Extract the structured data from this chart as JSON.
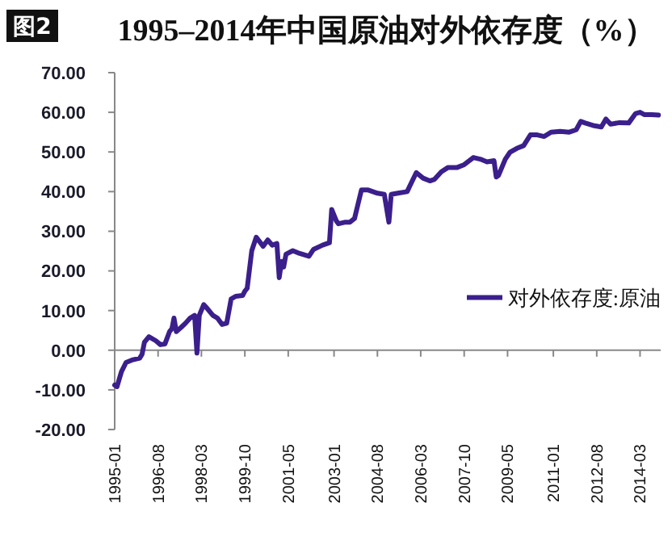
{
  "chart_data": {
    "type": "line",
    "title": "1995–2014年中国原油对外依存度（%）",
    "annotations": [
      "图2"
    ],
    "x": [
      "1995-01",
      "1995-02",
      "1995-04",
      "1995-06",
      "1995-09",
      "1995-12",
      "1996-01",
      "1996-02",
      "1996-04",
      "1996-07",
      "1996-09",
      "1996-11",
      "1997-01",
      "1997-02",
      "1997-03",
      "1997-04",
      "1997-06",
      "1997-08",
      "1997-10",
      "1997-12",
      "1998-01",
      "1998-02",
      "1998-04",
      "1998-05",
      "1998-08",
      "1998-10",
      "1998-12",
      "1999-02",
      "1999-04",
      "1999-06",
      "1999-09",
      "1999-10",
      "1999-11",
      "2000-01",
      "2000-03",
      "2000-06",
      "2000-08",
      "2000-10",
      "2000-12",
      "2001-01",
      "2001-02",
      "2001-03",
      "2001-04",
      "2001-07",
      "2001-10",
      "2002-02",
      "2002-04",
      "2002-08",
      "2002-11",
      "2002-12",
      "2003-02",
      "2003-03",
      "2003-06",
      "2003-08",
      "2003-10",
      "2004-01",
      "2004-04",
      "2004-08",
      "2004-11",
      "2005-01",
      "2005-02",
      "2005-05",
      "2005-09",
      "2006-01",
      "2006-04",
      "2006-07",
      "2006-09",
      "2006-12",
      "2007-03",
      "2007-07",
      "2007-10",
      "2008-02",
      "2008-05",
      "2008-08",
      "2008-11",
      "2008-12",
      "2009-01",
      "2009-04",
      "2009-06",
      "2009-09",
      "2009-12",
      "2010-03",
      "2010-06",
      "2010-09",
      "2010-12",
      "2011-04",
      "2011-08",
      "2011-11",
      "2012-01",
      "2012-03",
      "2012-07",
      "2012-10",
      "2012-12",
      "2013-02",
      "2013-06",
      "2013-10",
      "2014-01",
      "2014-03",
      "2014-05",
      "2014-08",
      "2014-11"
    ],
    "series": [
      {
        "name": "对外依存度:原油",
        "color": "#3b1f8c",
        "values": [
          -8.8,
          -9.2,
          -5.4,
          -3.1,
          -2.4,
          -2.0,
          -1.0,
          2.0,
          3.4,
          2.4,
          1.4,
          1.6,
          4.7,
          5.4,
          8.1,
          4.7,
          5.7,
          6.8,
          8.1,
          8.8,
          -0.7,
          8.8,
          11.5,
          10.9,
          8.8,
          8.1,
          6.5,
          6.8,
          12.9,
          13.6,
          13.8,
          14.9,
          15.6,
          25.1,
          28.5,
          26.2,
          27.8,
          26.5,
          26.9,
          18.3,
          22.4,
          21.0,
          24.2,
          25.1,
          24.4,
          23.7,
          25.4,
          26.5,
          27.1,
          35.5,
          32.6,
          31.9,
          32.3,
          32.3,
          33.2,
          40.4,
          40.4,
          39.6,
          39.3,
          32.3,
          39.3,
          39.6,
          40.0,
          44.8,
          43.4,
          42.7,
          43.1,
          45.0,
          46.1,
          46.1,
          46.8,
          48.6,
          48.2,
          47.5,
          47.8,
          43.7,
          44.1,
          48.2,
          49.9,
          50.9,
          51.6,
          54.3,
          54.3,
          53.9,
          55.0,
          55.2,
          55.0,
          55.6,
          57.7,
          57.3,
          56.6,
          56.3,
          58.3,
          57.0,
          57.4,
          57.3,
          59.7,
          60.0,
          59.4,
          59.4,
          59.3
        ]
      }
    ],
    "xlim": [
      "1995-01",
      "2014-12"
    ],
    "xticks": [
      "1995-01",
      "1996-08",
      "1998-03",
      "1999-10",
      "2001-05",
      "2003-01",
      "2004-08",
      "2006-03",
      "2007-10",
      "2009-05",
      "2011-01",
      "2012-08",
      "2014-03"
    ],
    "ylim": [
      -20,
      70
    ],
    "yticks": [
      {
        "value": -20,
        "label": "-20.00"
      },
      {
        "value": -10,
        "label": "-10.00"
      },
      {
        "value": 0,
        "label": "0.00"
      },
      {
        "value": 10,
        "label": "10.00"
      },
      {
        "value": 20,
        "label": "20.00"
      },
      {
        "value": 30,
        "label": "30.00"
      },
      {
        "value": 40,
        "label": "40.00"
      },
      {
        "value": 50,
        "label": "50.00"
      },
      {
        "value": 60,
        "label": "60.00"
      },
      {
        "value": 70,
        "label": "70.00"
      }
    ],
    "legend": "right"
  }
}
